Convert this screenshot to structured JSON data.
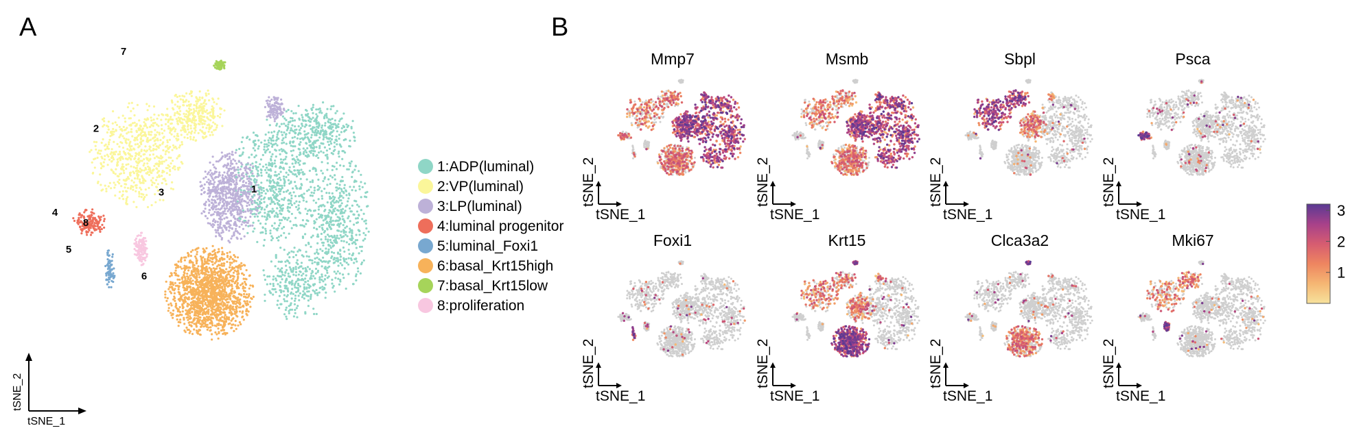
{
  "panels": {
    "a_label": "A",
    "b_label": "B"
  },
  "colors": {
    "cluster_1": "#8fd6c6",
    "cluster_2": "#fbf69a",
    "cluster_3": "#bdb1d8",
    "cluster_4": "#ee6e5b",
    "cluster_5": "#78a8d0",
    "cluster_6": "#f7b25a",
    "cluster_7": "#a6d45a",
    "cluster_8": "#f8c7e0",
    "background_cell": "#cfcfcf",
    "colorbar": [
      "#f7e29c",
      "#f5b673",
      "#ee8560",
      "#d65c71",
      "#a7418a",
      "#5a3a93"
    ]
  },
  "chart_data": [
    {
      "type": "scatter",
      "panel": "A",
      "xlabel": "tSNE_1",
      "ylabel": "tSNE_2",
      "legend_placement": "right",
      "clusters": [
        {
          "id": "1",
          "name": "1:ADP(luminal)"
        },
        {
          "id": "2",
          "name": "2:VP(luminal)"
        },
        {
          "id": "3",
          "name": "3:LP(luminal)"
        },
        {
          "id": "4",
          "name": "4:luminal progenitor"
        },
        {
          "id": "5",
          "name": "5:luminal_Foxi1"
        },
        {
          "id": "6",
          "name": "6:basal_Krt15high"
        },
        {
          "id": "7",
          "name": "7:basal_Krt15low"
        },
        {
          "id": "8",
          "name": "8:proliferation"
        }
      ]
    },
    {
      "type": "scatter",
      "panel": "B",
      "xlabel": "tSNE_1",
      "ylabel": "tSNE_2",
      "genes": [
        {
          "name": "Mmp7",
          "high_in": [
            "1",
            "3"
          ],
          "mid_in": [
            "2",
            "6",
            "4"
          ]
        },
        {
          "name": "Msmb",
          "high_in": [
            "3",
            "1"
          ],
          "mid_in": [
            "2",
            "6"
          ]
        },
        {
          "name": "Sbpl",
          "high_in": [
            "2"
          ],
          "mid_in": [
            "3"
          ]
        },
        {
          "name": "Psca",
          "high_in": [
            "4"
          ],
          "mid_in": []
        },
        {
          "name": "Foxi1",
          "high_in": [
            "5"
          ],
          "mid_in": []
        },
        {
          "name": "Krt15",
          "high_in": [
            "6",
            "7"
          ],
          "mid_in": [
            "2",
            "3"
          ]
        },
        {
          "name": "Clca3a2",
          "high_in": [
            "7"
          ],
          "mid_in": [
            "6"
          ]
        },
        {
          "name": "Mki67",
          "high_in": [
            "8"
          ],
          "mid_in": [
            "2"
          ]
        }
      ],
      "colorbar": {
        "min": 0,
        "max": 3.2,
        "ticks": [
          1,
          2,
          3
        ]
      }
    }
  ]
}
